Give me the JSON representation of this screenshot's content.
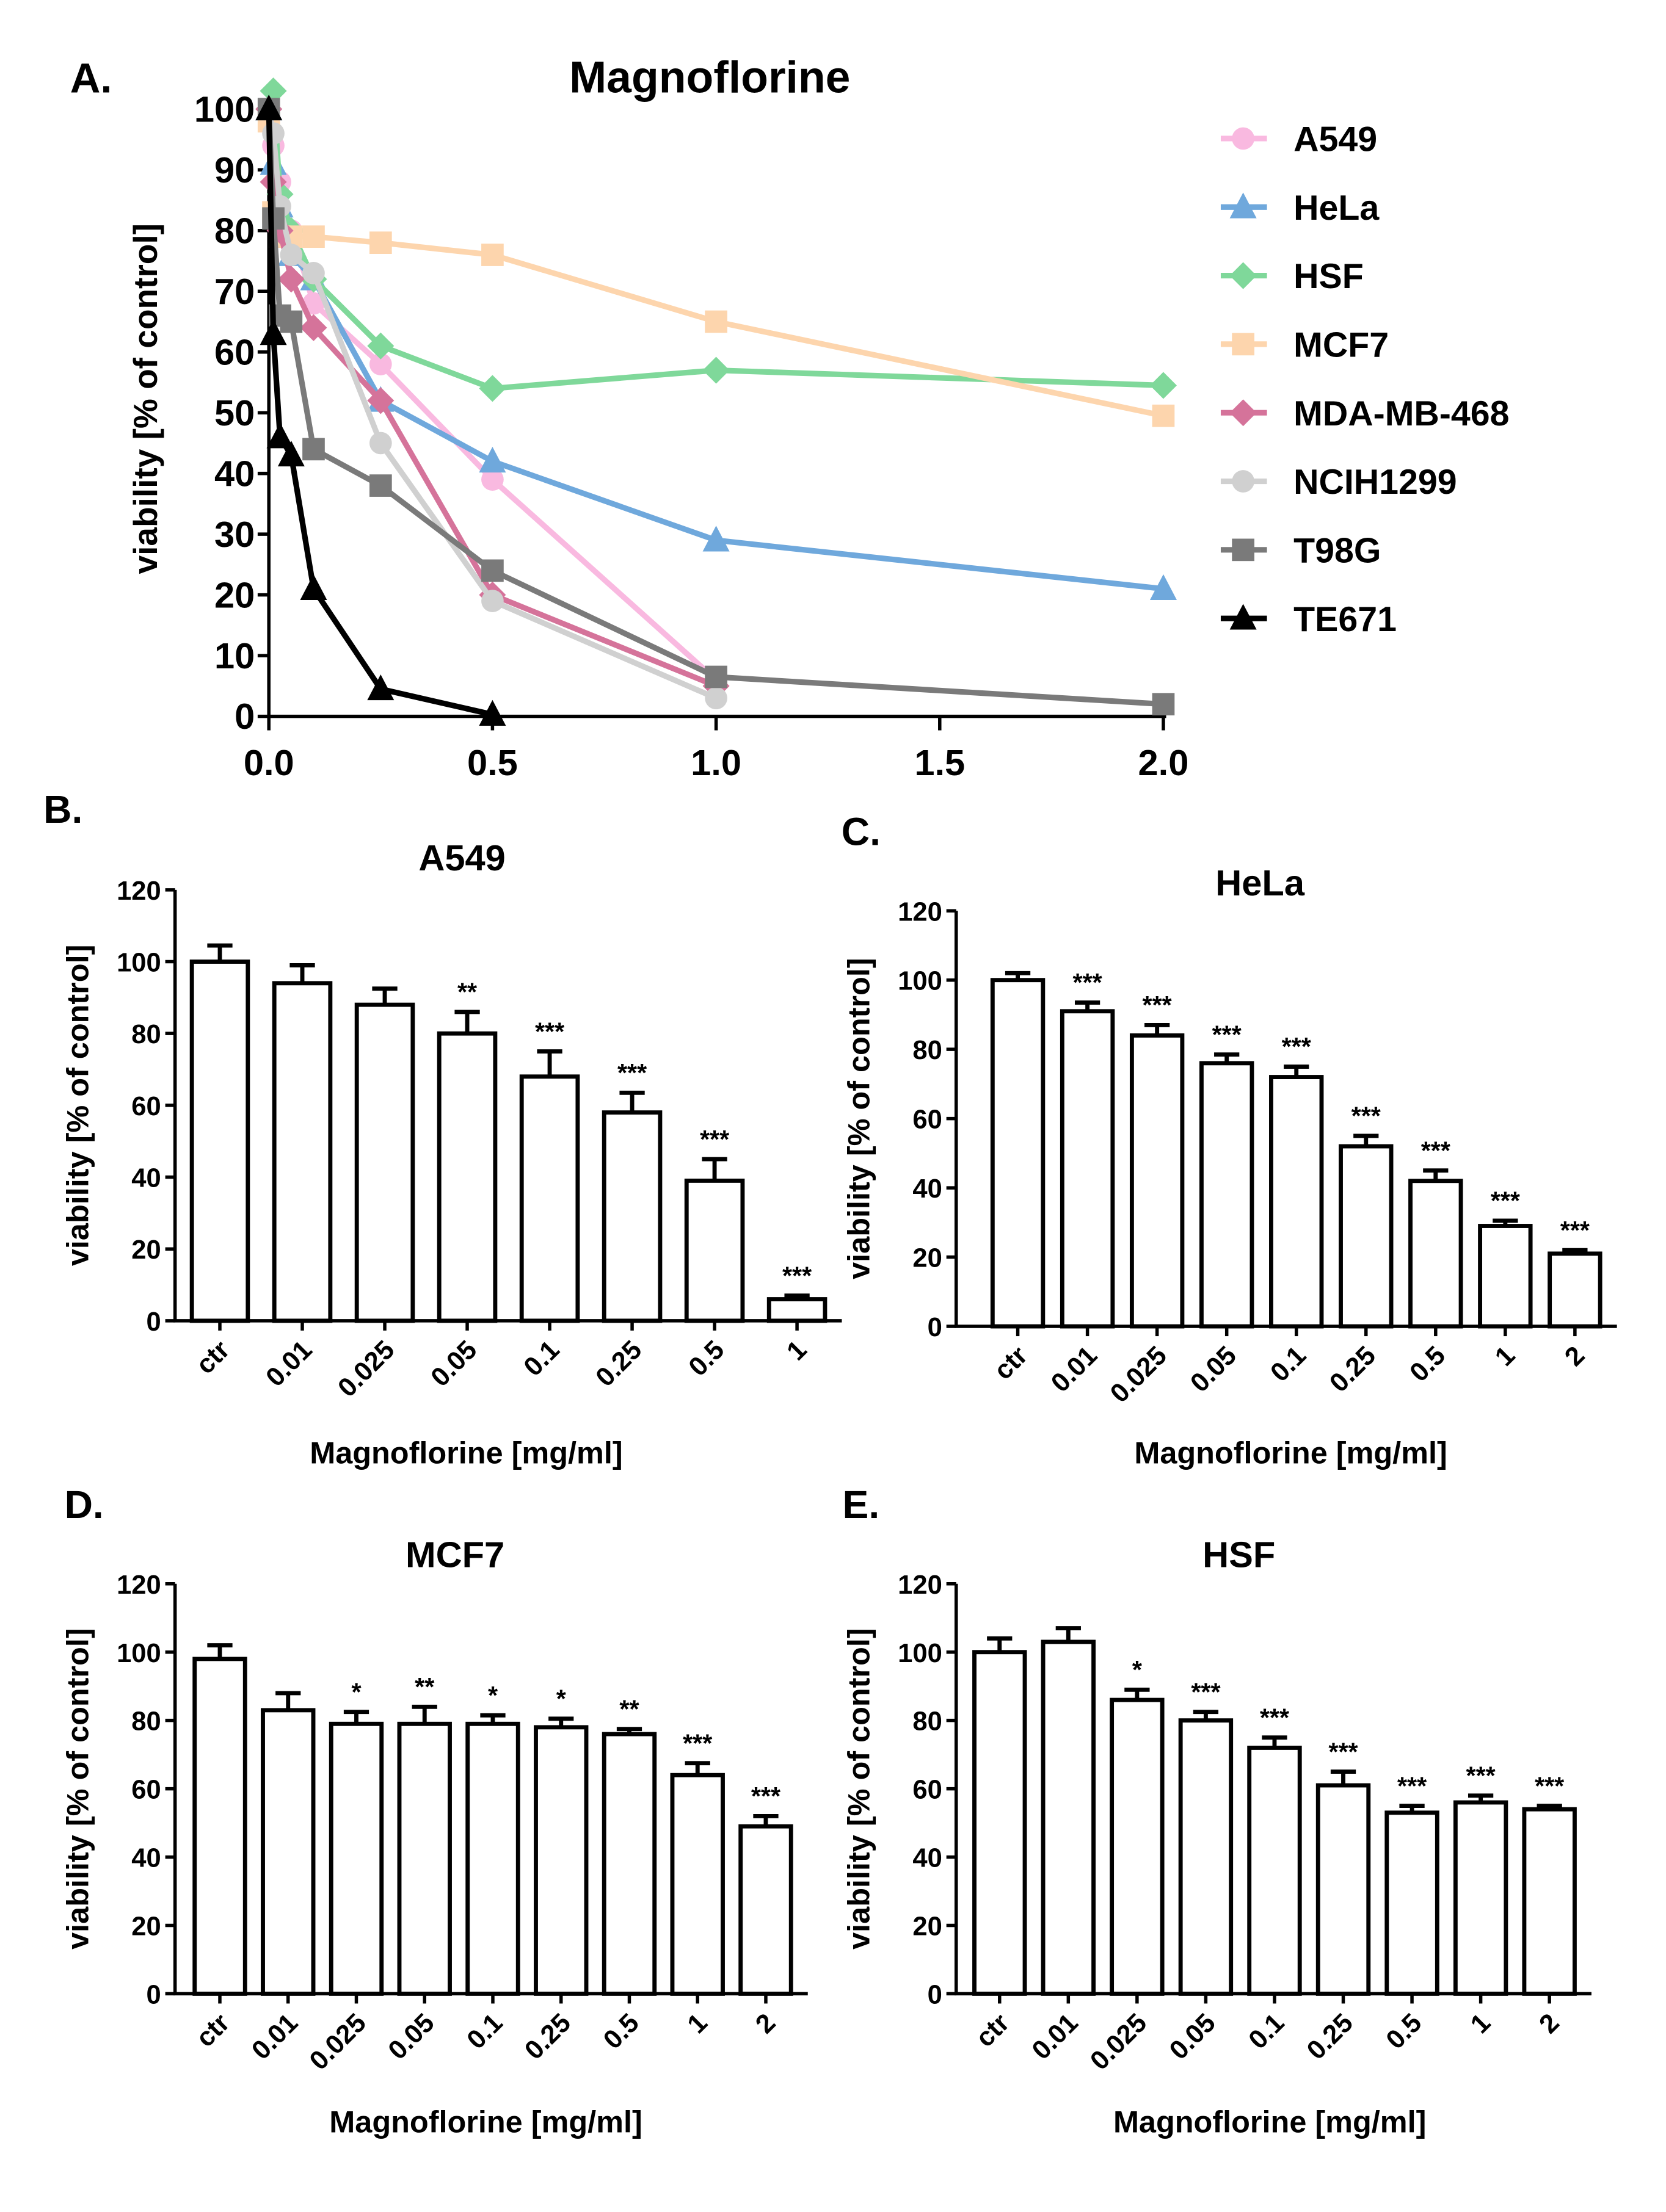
{
  "chart_data": [
    {
      "panel": "A.",
      "type": "line",
      "title": "Magnoflorine",
      "ylabel": "viability [% of control]",
      "xlabel": "",
      "xlim": [
        0,
        2.0
      ],
      "ylim": [
        0,
        100
      ],
      "xticks": [
        "0.0",
        "0.5",
        "1.0",
        "1.5",
        "2.0"
      ],
      "yticks": [
        "0",
        "10",
        "20",
        "30",
        "40",
        "50",
        "60",
        "70",
        "80",
        "90",
        "100"
      ],
      "legend": "right",
      "x": [
        0,
        0.01,
        0.025,
        0.05,
        0.1,
        0.25,
        0.5,
        1.0,
        2.0
      ],
      "series": [
        {
          "name": "A549",
          "color": "#f9b9e0",
          "marker": "circle",
          "values": [
            100,
            94,
            88,
            80,
            68,
            58,
            39,
            6,
            null
          ]
        },
        {
          "name": "HeLa",
          "color": "#6fa8dc",
          "marker": "triangle",
          "values": [
            100,
            91,
            84,
            76,
            72,
            52,
            42,
            29,
            21
          ]
        },
        {
          "name": "HSF",
          "color": "#7fd89a",
          "marker": "diamond",
          "values": [
            100,
            103,
            86,
            80,
            72,
            61,
            54,
            57,
            54.5
          ]
        },
        {
          "name": "MCF7",
          "color": "#fdd5ad",
          "marker": "square",
          "values": [
            98,
            83,
            79,
            79,
            79,
            78,
            76,
            65,
            49.5
          ]
        },
        {
          "name": "MDA-MB-468",
          "color": "#d5739a",
          "marker": "diamond",
          "values": [
            100,
            88,
            80,
            72,
            64,
            52,
            20,
            5,
            null
          ]
        },
        {
          "name": "NCIH1299",
          "color": "#d0d0d0",
          "marker": "circle",
          "values": [
            100,
            96,
            84,
            76,
            73,
            45,
            19,
            3,
            null
          ]
        },
        {
          "name": "T98G",
          "color": "#7a7a7a",
          "marker": "square",
          "values": [
            100,
            82,
            66,
            65,
            44,
            38,
            24,
            6.5,
            2
          ]
        },
        {
          "name": "TE671",
          "color": "#000000",
          "marker": "triangle",
          "values": [
            100,
            63,
            46,
            43,
            21,
            4.5,
            0.3,
            null,
            null
          ]
        }
      ]
    },
    {
      "panel": "B.",
      "type": "bar",
      "title": "A549",
      "ylabel": "viability [% of control]",
      "xlabel": "Magnoflorine [mg/ml]",
      "ylim": [
        0,
        120
      ],
      "yticks": [
        "0",
        "20",
        "40",
        "60",
        "80",
        "100",
        "120"
      ],
      "categories": [
        "ctr",
        "0.01",
        "0.025",
        "0.05",
        "0.1",
        "0.25",
        "0.5",
        "1"
      ],
      "values": [
        100,
        94,
        88,
        80,
        68,
        58,
        39,
        6
      ],
      "errors": [
        4.5,
        5,
        4.5,
        6,
        7,
        5.5,
        6,
        1
      ],
      "significance": [
        "",
        "",
        "",
        "**",
        "***",
        "***",
        "***",
        "***"
      ]
    },
    {
      "panel": "C.",
      "type": "bar",
      "title": "HeLa",
      "ylabel": "viability [% of control]",
      "xlabel": "Magnoflorine [mg/ml]",
      "ylim": [
        0,
        120
      ],
      "yticks": [
        "0",
        "20",
        "40",
        "60",
        "80",
        "100",
        "120"
      ],
      "categories": [
        "ctr",
        "0.01",
        "0.025",
        "0.05",
        "0.1",
        "0.25",
        "0.5",
        "1",
        "2"
      ],
      "values": [
        100,
        91,
        84,
        76,
        72,
        52,
        42,
        29,
        21
      ],
      "errors": [
        2,
        2.5,
        3,
        2.5,
        3,
        3,
        3,
        1.5,
        1
      ],
      "significance": [
        "",
        "***",
        "***",
        "***",
        "***",
        "***",
        "***",
        "***",
        "***"
      ]
    },
    {
      "panel": "D.",
      "type": "bar",
      "title": "MCF7",
      "ylabel": "viability [% of control]",
      "xlabel": "Magnoflorine [mg/ml]",
      "ylim": [
        0,
        120
      ],
      "yticks": [
        "0",
        "20",
        "40",
        "60",
        "80",
        "100",
        "120"
      ],
      "categories": [
        "ctr",
        "0.01",
        "0.025",
        "0.05",
        "0.1",
        "0.25",
        "0.5",
        "1",
        "2"
      ],
      "values": [
        98,
        83,
        79,
        79,
        79,
        78,
        76,
        64,
        49
      ],
      "errors": [
        4,
        5,
        3.5,
        5,
        2.5,
        2.5,
        1.5,
        3.5,
        3
      ],
      "significance": [
        "",
        "",
        "*",
        "**",
        "*",
        "*",
        "**",
        "***",
        "***"
      ]
    },
    {
      "panel": "E.",
      "type": "bar",
      "title": "HSF",
      "ylabel": "viability [% of control]",
      "xlabel": "Magnoflorine [mg/ml]",
      "ylim": [
        0,
        120
      ],
      "yticks": [
        "0",
        "20",
        "40",
        "60",
        "80",
        "100",
        "120"
      ],
      "categories": [
        "ctr",
        "0.01",
        "0.025",
        "0.05",
        "0.1",
        "0.25",
        "0.5",
        "1",
        "2"
      ],
      "values": [
        100,
        103,
        86,
        80,
        72,
        61,
        53,
        56,
        54
      ],
      "errors": [
        4,
        4,
        3,
        2.5,
        3,
        4,
        2,
        2,
        1
      ],
      "significance": [
        "",
        "",
        "*",
        "***",
        "***",
        "***",
        "***",
        "***",
        "***"
      ]
    }
  ]
}
